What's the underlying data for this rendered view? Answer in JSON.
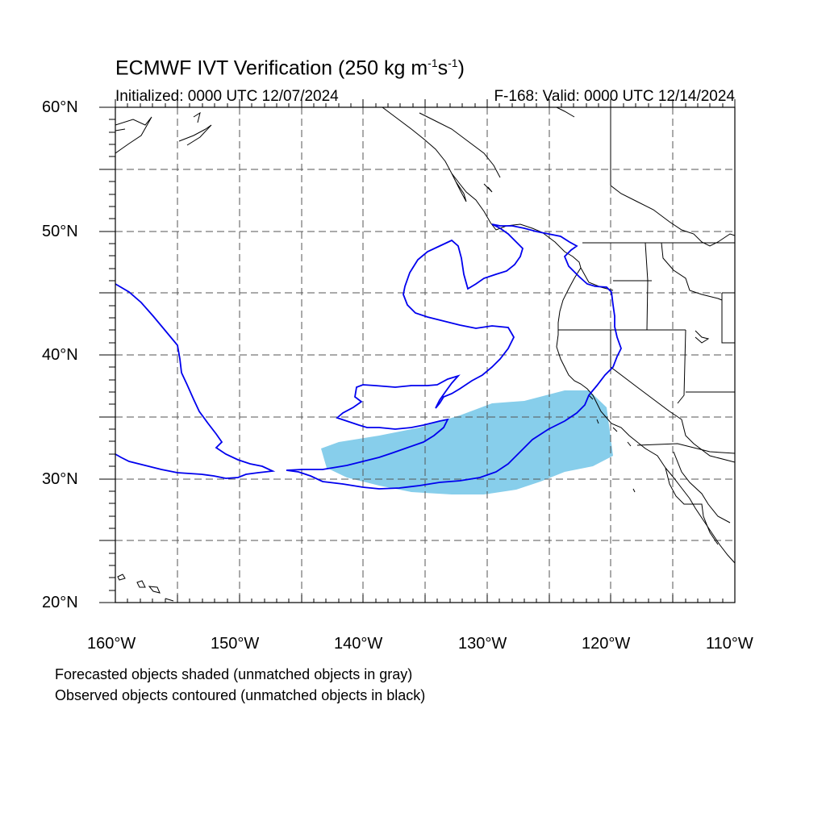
{
  "header": {
    "title_main": "ECMWF IVT Verification (250 kg m",
    "title_sup1": "-1",
    "title_mid": "s",
    "title_sup2": "-1",
    "title_end": ")",
    "initialized": "Initialized: 0000 UTC 12/07/2024",
    "valid": "F-168: Valid: 0000 UTC 12/14/2024"
  },
  "axes": {
    "lat_labels": [
      "60°N",
      "50°N",
      "40°N",
      "30°N",
      "20°N"
    ],
    "lon_labels": [
      "160°W",
      "150°W",
      "140°W",
      "130°W",
      "120°W",
      "110°W"
    ],
    "lat_range": [
      20,
      60
    ],
    "lon_range": [
      -160,
      -110
    ]
  },
  "legend": {
    "forecast_note": "Forecasted objects shaded (unmatched objects in gray)",
    "observed_note": "Observed objects contoured (unmatched objects in black)"
  },
  "colors": {
    "forecast_fill": "#87CEEB",
    "observed_contour": "#0000EE",
    "grid": "#555555",
    "coastline": "#000000"
  }
}
